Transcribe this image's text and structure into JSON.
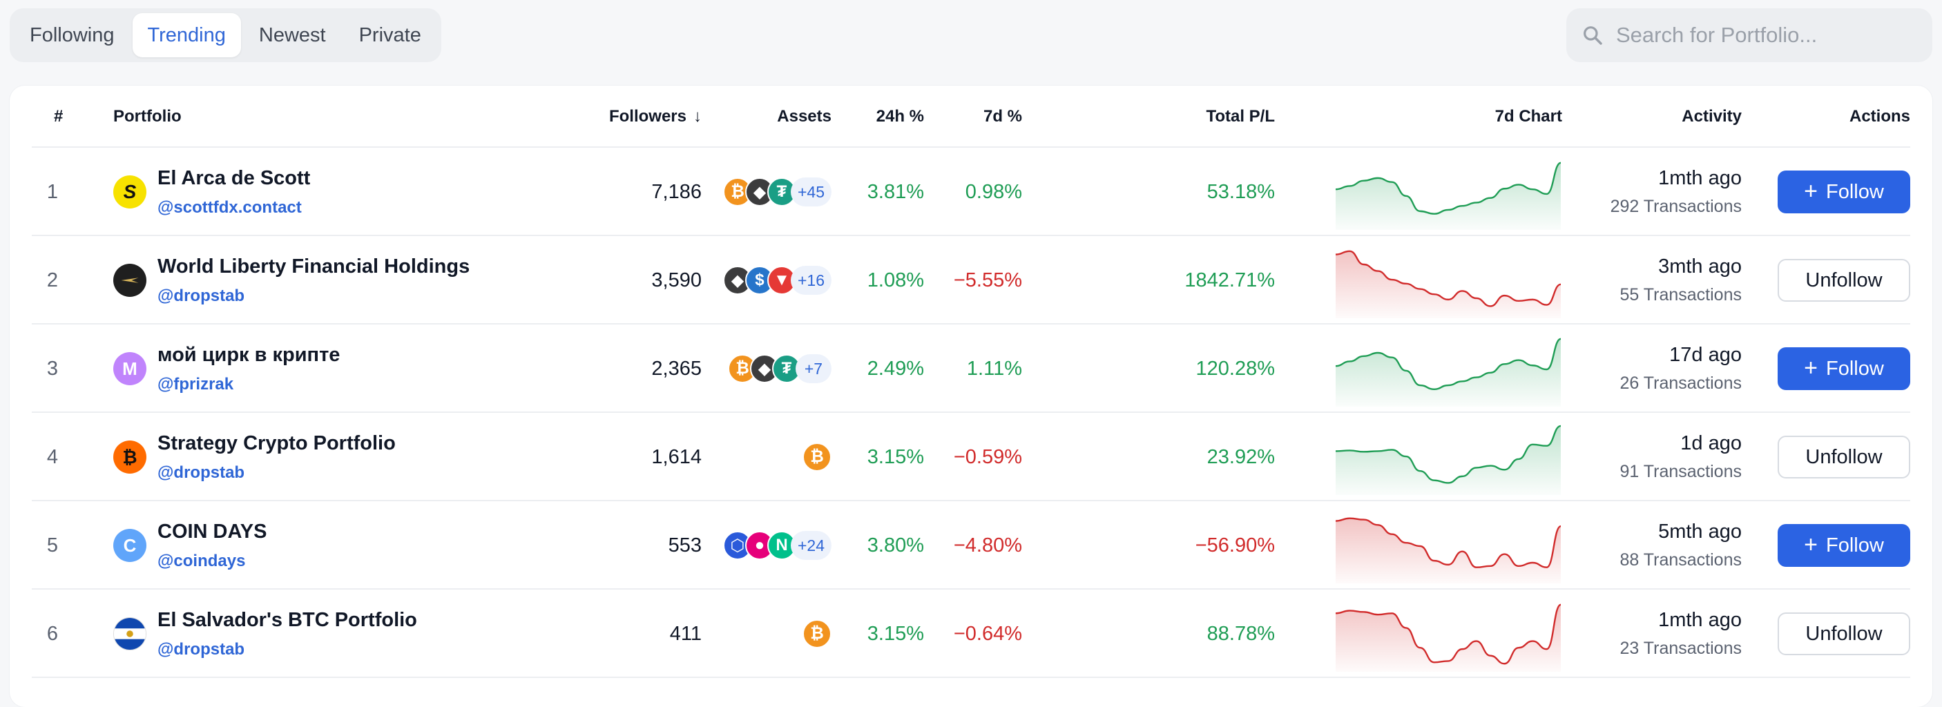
{
  "tabs": [
    {
      "label": "Following",
      "active": false
    },
    {
      "label": "Trending",
      "active": true
    },
    {
      "label": "Newest",
      "active": false
    },
    {
      "label": "Private",
      "active": false
    }
  ],
  "search": {
    "placeholder": "Search for Portfolio..."
  },
  "table": {
    "headers": {
      "rank": "#",
      "portfolio": "Portfolio",
      "followers": "Followers",
      "followers_sort": "↓",
      "assets": "Assets",
      "change_24h": "24h %",
      "change_7d": "7d %",
      "total_pl": "Total P/L",
      "chart_7d": "7d Chart",
      "activity": "Activity",
      "actions": "Actions"
    },
    "rows": [
      {
        "rank": "1",
        "name": "El Arca de Scott",
        "handle": "@scottfdx.contact",
        "avatar": {
          "text": "S",
          "bg": "#f7e200",
          "fg": "#111111",
          "icon": "scott-logo"
        },
        "followers": "7,186",
        "assets": [
          {
            "icon": "bitcoin-icon",
            "color": "#f2931e",
            "glyph": "₿"
          },
          {
            "icon": "ethereum-icon",
            "color": "#3c3c3d",
            "glyph": "◆"
          },
          {
            "icon": "tether-icon",
            "color": "#1a9e85",
            "glyph": "₮"
          }
        ],
        "assets_more": "+45",
        "change_24h": "3.81%",
        "change_24h_dir": "pos",
        "change_7d": "0.98%",
        "change_7d_dir": "pos",
        "total_pl": "53.18%",
        "total_pl_dir": "pos",
        "chart": {
          "trend": "up",
          "values": [
            55,
            60,
            68,
            72,
            66,
            45,
            22,
            18,
            24,
            30,
            35,
            42,
            56,
            62,
            55,
            48,
            95
          ]
        },
        "activity_time": "1mth ago",
        "activity_tx": "292 Transactions",
        "action": "Follow",
        "action_type": "follow"
      },
      {
        "rank": "2",
        "name": "World Liberty Financial Holdings",
        "handle": "@dropstab",
        "avatar": {
          "text": "",
          "bg": "#1f1f1f",
          "fg": "#d9b65a",
          "icon": "eagle-logo"
        },
        "followers": "3,590",
        "assets": [
          {
            "icon": "ethereum-icon",
            "color": "#3c3c3d",
            "glyph": "◆"
          },
          {
            "icon": "usdc-icon",
            "color": "#2775ca",
            "glyph": "$"
          },
          {
            "icon": "tron-icon",
            "color": "#e53935",
            "glyph": "▼"
          }
        ],
        "assets_more": "+16",
        "change_24h": "1.08%",
        "change_24h_dir": "pos",
        "change_7d": "−5.55%",
        "change_7d_dir": "neg",
        "total_pl": "1842.71%",
        "total_pl_dir": "pos",
        "chart": {
          "trend": "down",
          "values": [
            90,
            95,
            75,
            65,
            52,
            46,
            38,
            30,
            22,
            35,
            24,
            12,
            28,
            20,
            22,
            14,
            45
          ]
        },
        "activity_time": "3mth ago",
        "activity_tx": "55 Transactions",
        "action": "Unfollow",
        "action_type": "unfollow"
      },
      {
        "rank": "3",
        "name": "мой цирк в крипте",
        "handle": "@fprizrak",
        "avatar": {
          "text": "M",
          "bg": "#c084fc",
          "fg": "#ffffff",
          "icon": "letter-m-avatar"
        },
        "followers": "2,365",
        "assets": [
          {
            "icon": "bitcoin-icon",
            "color": "#f2931e",
            "glyph": "₿"
          },
          {
            "icon": "ethereum-icon",
            "color": "#3c3c3d",
            "glyph": "◆"
          },
          {
            "icon": "tether-icon",
            "color": "#1a9e85",
            "glyph": "₮"
          }
        ],
        "assets_more": "+7",
        "change_24h": "2.49%",
        "change_24h_dir": "pos",
        "change_7d": "1.11%",
        "change_7d_dir": "pos",
        "total_pl": "120.28%",
        "total_pl_dir": "pos",
        "chart": {
          "trend": "up",
          "values": [
            55,
            62,
            70,
            75,
            68,
            48,
            26,
            20,
            26,
            32,
            38,
            45,
            58,
            64,
            56,
            50,
            96
          ]
        },
        "activity_time": "17d ago",
        "activity_tx": "26 Transactions",
        "action": "Follow",
        "action_type": "follow"
      },
      {
        "rank": "4",
        "name": "Strategy Crypto Portfolio",
        "handle": "@dropstab",
        "avatar": {
          "text": "₿",
          "bg": "#ff6b00",
          "fg": "#111111",
          "icon": "strategy-bitcoin-logo"
        },
        "followers": "1,614",
        "assets": [
          {
            "icon": "bitcoin-icon",
            "color": "#f2931e",
            "glyph": "₿"
          }
        ],
        "assets_more": "",
        "change_24h": "3.15%",
        "change_24h_dir": "pos",
        "change_7d": "−0.59%",
        "change_7d_dir": "neg",
        "total_pl": "23.92%",
        "total_pl_dir": "pos",
        "chart": {
          "trend": "up",
          "values": [
            60,
            61,
            59,
            60,
            62,
            52,
            30,
            16,
            12,
            22,
            35,
            38,
            32,
            48,
            70,
            68,
            98
          ]
        },
        "activity_time": "1d ago",
        "activity_tx": "91 Transactions",
        "action": "Unfollow",
        "action_type": "unfollow"
      },
      {
        "rank": "5",
        "name": "COIN DAYS",
        "handle": "@coindays",
        "avatar": {
          "text": "C",
          "bg": "#60a5fa",
          "fg": "#ffffff",
          "icon": "letter-c-avatar"
        },
        "followers": "553",
        "assets": [
          {
            "icon": "chainlink-icon",
            "color": "#2a5ada",
            "glyph": "⬡"
          },
          {
            "icon": "polkadot-icon",
            "color": "#e6007a",
            "glyph": "●"
          },
          {
            "icon": "near-icon",
            "color": "#00c08b",
            "glyph": "N"
          }
        ],
        "assets_more": "+24",
        "change_24h": "3.80%",
        "change_24h_dir": "pos",
        "change_7d": "−4.80%",
        "change_7d_dir": "neg",
        "total_pl": "−56.90%",
        "total_pl_dir": "neg",
        "chart": {
          "trend": "down",
          "values": [
            88,
            92,
            90,
            82,
            68,
            55,
            50,
            28,
            22,
            42,
            18,
            20,
            38,
            20,
            25,
            18,
            80
          ]
        },
        "activity_time": "5mth ago",
        "activity_tx": "88 Transactions",
        "action": "Follow",
        "action_type": "follow"
      },
      {
        "rank": "6",
        "name": "El Salvador's BTC Portfolio",
        "handle": "@dropstab",
        "avatar": {
          "text": "",
          "bg": "#ffffff",
          "fg": "#0f47af",
          "icon": "el-salvador-flag"
        },
        "followers": "411",
        "assets": [
          {
            "icon": "bitcoin-icon",
            "color": "#f2931e",
            "glyph": "₿"
          }
        ],
        "assets_more": "",
        "change_24h": "3.15%",
        "change_24h_dir": "pos",
        "change_7d": "−0.64%",
        "change_7d_dir": "neg",
        "total_pl": "88.78%",
        "total_pl_dir": "pos",
        "chart": {
          "trend": "down",
          "values": [
            82,
            86,
            84,
            80,
            82,
            60,
            30,
            8,
            10,
            28,
            40,
            18,
            6,
            30,
            40,
            28,
            95
          ]
        },
        "activity_time": "1mth ago",
        "activity_tx": "23 Transactions",
        "action": "Unfollow",
        "action_type": "unfollow"
      }
    ]
  },
  "colors": {
    "accent": "#2b63e3",
    "positive": "#1f9d55",
    "negative": "#d12b2b",
    "link": "#2f66d6"
  }
}
